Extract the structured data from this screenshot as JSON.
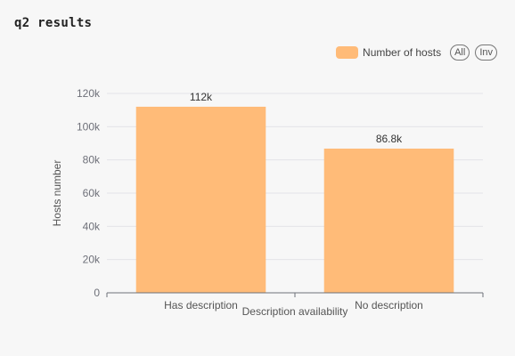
{
  "panel": {
    "title": "q2 results"
  },
  "legend": {
    "series_label": "Number of hosts",
    "all_label": "All",
    "inv_label": "Inv"
  },
  "colors": {
    "bar": "#ffbb78",
    "grid": "#e3e3e8",
    "axis": "#6e7079"
  },
  "chart_data": {
    "type": "bar",
    "categories": [
      "Has description",
      "No description"
    ],
    "series": [
      {
        "name": "Number of hosts",
        "values": [
          112000,
          86800
        ]
      }
    ],
    "data_labels": [
      "112k",
      "86.8k"
    ],
    "xlabel": "Description availability",
    "ylabel": "Hosts number",
    "ylim": [
      0,
      120000
    ],
    "yticks": [
      0,
      20000,
      40000,
      60000,
      80000,
      100000,
      120000
    ],
    "ytick_labels": [
      "0",
      "20k",
      "40k",
      "60k",
      "80k",
      "100k",
      "120k"
    ],
    "grid": true,
    "legend_position": "top-right"
  }
}
